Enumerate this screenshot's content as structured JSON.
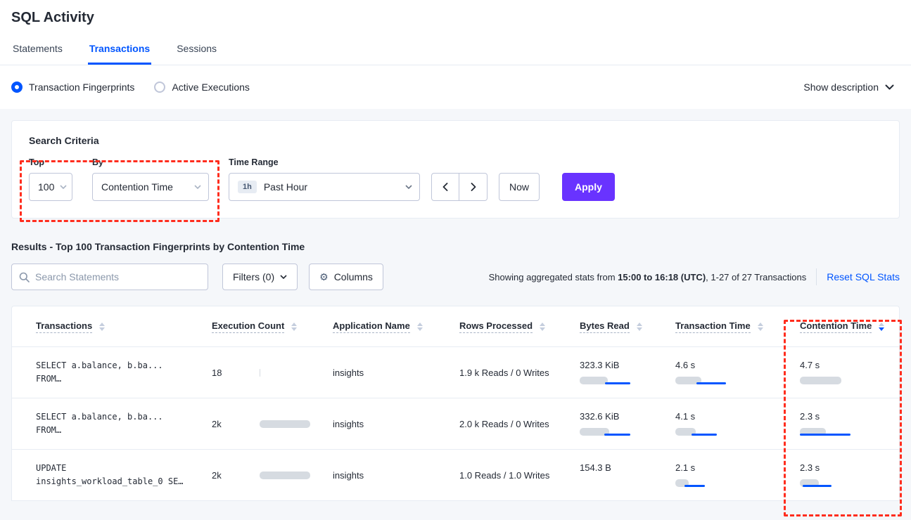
{
  "colors": {
    "accent": "#0055ff",
    "apply_button": "#6933ff",
    "highlight": "#ff2d1e"
  },
  "page": {
    "title": "SQL Activity"
  },
  "tabs": [
    {
      "label": "Statements"
    },
    {
      "label": "Transactions"
    },
    {
      "label": "Sessions"
    }
  ],
  "view_options": {
    "fingerprints": "Transaction Fingerprints",
    "active_executions": "Active Executions",
    "show_description": "Show description"
  },
  "search_criteria": {
    "title": "Search Criteria",
    "top_label": "Top",
    "top_value": "100",
    "by_label": "By",
    "by_value": "Contention Time",
    "time_range_label": "Time Range",
    "time_range_badge": "1h",
    "time_range_value": "Past Hour",
    "now_label": "Now",
    "apply_label": "Apply"
  },
  "results": {
    "title": "Results - Top 100 Transaction Fingerprints by Contention Time",
    "search_placeholder": "Search Statements",
    "filters_label": "Filters (0)",
    "columns_label": "Columns",
    "stats_prefix": "Showing aggregated stats from ",
    "stats_range": "15:00 to 16:18 (UTC)",
    "stats_suffix": ", 1-27 of 27 Transactions",
    "reset_label": "Reset SQL Stats"
  },
  "table": {
    "headers": [
      "Transactions",
      "Execution Count",
      "Application Name",
      "Rows Processed",
      "Bytes Read",
      "Transaction Time",
      "Contention Time"
    ],
    "sorted_by": "Contention Time",
    "sort_direction": "desc",
    "rows": [
      {
        "query_line1": "SELECT a.balance, b.ba...",
        "query_line2": "FROM…",
        "execution_count": "18",
        "execution_chart": {
          "bar": 2
        },
        "application_name": "insights",
        "rows_processed": "1.9 k Reads / 0 Writes",
        "bytes_read": "323.3 KiB",
        "bytes_chart": {
          "bar": 56,
          "line": [
            50,
            100
          ]
        },
        "transaction_time": "4.6 s",
        "transaction_chart": {
          "bar": 52,
          "line": [
            42,
            100
          ]
        },
        "contention_time": "4.7 s",
        "contention_chart": {
          "bar": 82
        }
      },
      {
        "query_line1": "SELECT a.balance, b.ba...",
        "query_line2": "FROM…",
        "execution_count": "2k",
        "execution_chart": {
          "bar": 100
        },
        "application_name": "insights",
        "rows_processed": "2.0 k Reads / 0 Writes",
        "bytes_read": "332.6 KiB",
        "bytes_chart": {
          "bar": 58,
          "line": [
            48,
            100
          ]
        },
        "transaction_time": "4.1 s",
        "transaction_chart": {
          "bar": 40,
          "line": [
            32,
            82
          ]
        },
        "contention_time": "2.3 s",
        "contention_chart": {
          "bar": 52,
          "line": [
            0,
            100
          ]
        }
      },
      {
        "query_line1": "UPDATE",
        "query_line2": "insights_workload_table_0 SE…",
        "execution_count": "2k",
        "execution_chart": {
          "bar": 100
        },
        "application_name": "insights",
        "rows_processed": "1.0 Reads / 1.0 Writes",
        "bytes_read": "154.3 B",
        "bytes_chart": null,
        "transaction_time": "2.1 s",
        "transaction_chart": {
          "bar": 26,
          "line": [
            18,
            58
          ]
        },
        "contention_time": "2.3 s",
        "contention_chart": {
          "bar": 38,
          "line": [
            6,
            62
          ]
        }
      }
    ]
  }
}
